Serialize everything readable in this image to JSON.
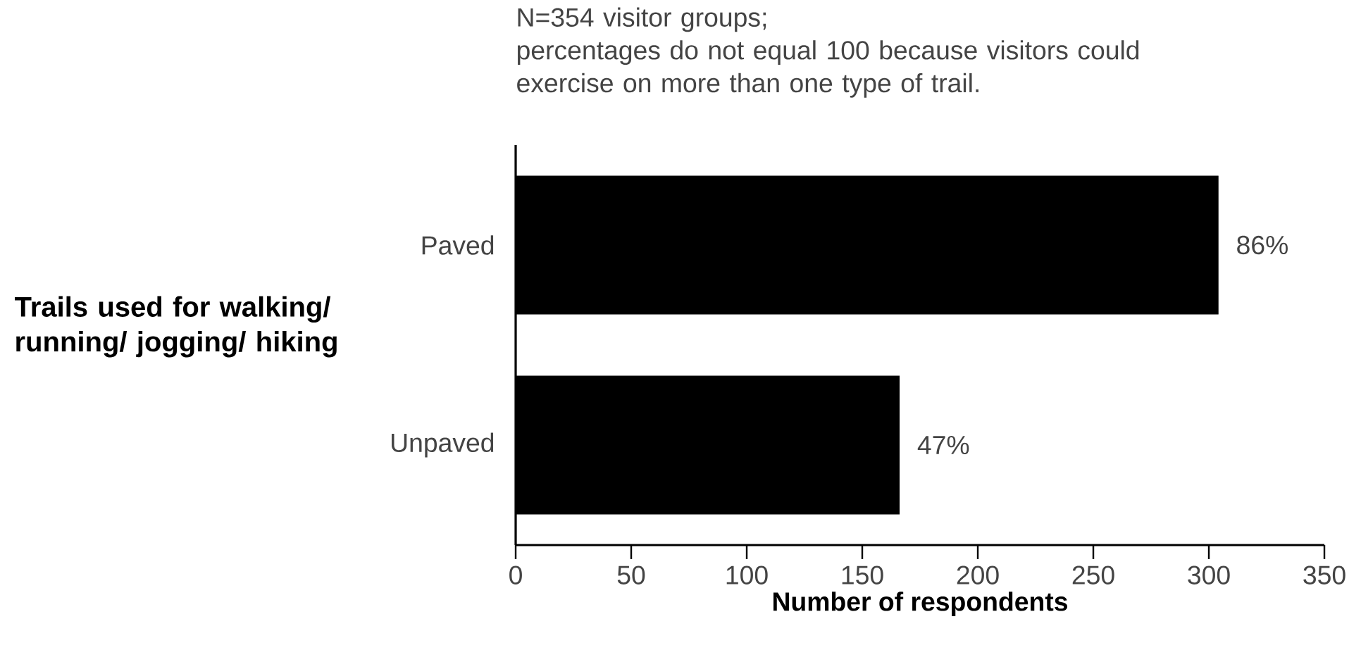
{
  "chart_data": {
    "type": "bar",
    "orientation": "horizontal",
    "categories": [
      "Paved",
      "Unpaved"
    ],
    "values": [
      304,
      166
    ],
    "color": "#000000",
    "xlim": [
      0,
      350
    ],
    "xticks": [
      0,
      50,
      100,
      150,
      200,
      250,
      300,
      350
    ],
    "xlabel": "Number of respondents",
    "annotations": [
      "Trails used for walking/ running/ jogging/ hiking",
      "N=354 visitor groups;",
      "percentages do not equal 100 because visitors could exercise on more than one type of trail.",
      {
        "text": "86%",
        "x": 304,
        "y": "Paved"
      },
      {
        "text": "47%",
        "x": 166,
        "y": "Unpaved"
      }
    ]
  }
}
